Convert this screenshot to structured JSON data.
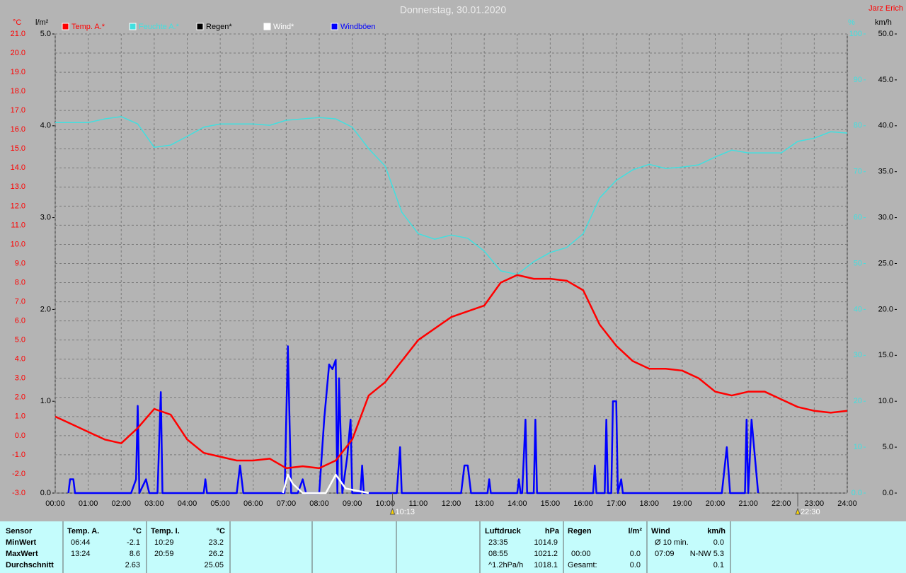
{
  "chart_data": {
    "type": "line",
    "title": "Donnerstag, 30.01.2020",
    "author": "Jarz Erich",
    "y_unit": "°C",
    "y2_unit": "l/m²",
    "y3_unit": "%",
    "y4_unit": "km/h",
    "xlim": [
      0,
      24
    ],
    "xticks": [
      {
        "value": 0,
        "label": "00:00"
      },
      {
        "value": 1,
        "label": "01:00"
      },
      {
        "value": 2,
        "label": "02:00"
      },
      {
        "value": 3,
        "label": "03:00"
      },
      {
        "value": 4,
        "label": "04:00"
      },
      {
        "value": 5,
        "label": "05:00"
      },
      {
        "value": 6,
        "label": "06:00"
      },
      {
        "value": 7,
        "label": "07:00"
      },
      {
        "value": 8,
        "label": "08:00"
      },
      {
        "value": 9,
        "label": "09:00"
      },
      {
        "value": 10,
        "label": "10:00"
      },
      {
        "value": 11,
        "label": "11:00"
      },
      {
        "value": 12,
        "label": "12:00"
      },
      {
        "value": 13,
        "label": "13:00"
      },
      {
        "value": 14,
        "label": "14:00"
      },
      {
        "value": 15,
        "label": "15:00"
      },
      {
        "value": 16,
        "label": "16:00"
      },
      {
        "value": 17,
        "label": "17:00"
      },
      {
        "value": 18,
        "label": "18:00"
      },
      {
        "value": 19,
        "label": "19:00"
      },
      {
        "value": 20,
        "label": "20:00"
      },
      {
        "value": 21,
        "label": "21:00"
      },
      {
        "value": 22,
        "label": "22:00"
      },
      {
        "value": 23,
        "label": "23:00"
      },
      {
        "value": 24,
        "label": "24:00"
      }
    ],
    "ylim": [
      -3,
      21
    ],
    "yticks": [
      {
        "value": -3,
        "label": "-3.0"
      },
      {
        "value": -2,
        "label": "-2.0"
      },
      {
        "value": -1,
        "label": "-1.0"
      },
      {
        "value": 0,
        "label": "0.0"
      },
      {
        "value": 1,
        "label": "1.0"
      },
      {
        "value": 2,
        "label": "2.0"
      },
      {
        "value": 3,
        "label": "3.0"
      },
      {
        "value": 4,
        "label": "4.0"
      },
      {
        "value": 5,
        "label": "5.0"
      },
      {
        "value": 6,
        "label": "6.0"
      },
      {
        "value": 7,
        "label": "7.0"
      },
      {
        "value": 8,
        "label": "8.0"
      },
      {
        "value": 9,
        "label": "9.0"
      },
      {
        "value": 10,
        "label": "10.0"
      },
      {
        "value": 11,
        "label": "11.0"
      },
      {
        "value": 12,
        "label": "12.0"
      },
      {
        "value": 13,
        "label": "13.0"
      },
      {
        "value": 14,
        "label": "14.0"
      },
      {
        "value": 15,
        "label": "15.0"
      },
      {
        "value": 16,
        "label": "16.0"
      },
      {
        "value": 17,
        "label": "17.0"
      },
      {
        "value": 18,
        "label": "18.0"
      },
      {
        "value": 19,
        "label": "19.0"
      },
      {
        "value": 20,
        "label": "20.0"
      },
      {
        "value": 21,
        "label": "21.0"
      }
    ],
    "y2lim": [
      0,
      5
    ],
    "y2ticks": [
      {
        "value": 0,
        "label": "0.0"
      },
      {
        "value": 1,
        "label": "1.0"
      },
      {
        "value": 2,
        "label": "2.0"
      },
      {
        "value": 3,
        "label": "3.0"
      },
      {
        "value": 4,
        "label": "4.0"
      },
      {
        "value": 5,
        "label": "5.0"
      }
    ],
    "y3lim": [
      0,
      100
    ],
    "y3ticks": [
      {
        "value": 0,
        "label": "0.0"
      },
      10,
      20,
      30,
      40,
      50,
      60,
      70,
      80,
      90,
      100
    ],
    "y4lim": [
      0,
      50
    ],
    "y4ticks": [
      {
        "value": 0,
        "label": "0.0"
      },
      {
        "value": 5,
        "label": "5.0"
      },
      {
        "value": 10,
        "label": "10.0"
      },
      {
        "value": 15,
        "label": "15.0"
      },
      {
        "value": 20,
        "label": "20.0"
      },
      {
        "value": 25,
        "label": "25.0"
      },
      {
        "value": 30,
        "label": "30.0"
      },
      {
        "value": 35,
        "label": "35.0"
      },
      {
        "value": 40,
        "label": "40.0"
      },
      {
        "value": 45,
        "label": "45.0"
      },
      {
        "value": 50,
        "label": "50.0"
      }
    ],
    "grid": true,
    "series": [
      {
        "name": "Temp. A.*",
        "color": "#ff0000",
        "axis": "y",
        "x": [
          0,
          0.5,
          1,
          1.5,
          2,
          2.5,
          3,
          3.5,
          4,
          4.5,
          5,
          5.5,
          6,
          6.5,
          7,
          7.5,
          8,
          8.5,
          9,
          9.5,
          10,
          10.5,
          11,
          11.5,
          12,
          12.5,
          13,
          13.5,
          14,
          14.5,
          15,
          15.5,
          16,
          16.5,
          17,
          17.5,
          18,
          18.5,
          19,
          19.5,
          20,
          20.5,
          21,
          21.5,
          22,
          22.5,
          23,
          23.5,
          24
        ],
        "values": [
          1.0,
          0.6,
          0.2,
          -0.2,
          -0.4,
          0.4,
          1.4,
          1.1,
          -0.2,
          -0.9,
          -1.1,
          -1.3,
          -1.3,
          -1.2,
          -1.7,
          -1.6,
          -1.7,
          -1.3,
          -0.2,
          2.1,
          2.8,
          3.9,
          5.0,
          5.6,
          6.2,
          6.5,
          6.8,
          8.0,
          8.4,
          8.2,
          8.2,
          8.1,
          7.6,
          5.8,
          4.7,
          3.9,
          3.5,
          3.5,
          3.4,
          3.0,
          2.3,
          2.1,
          2.3,
          2.3,
          1.9,
          1.5,
          1.3,
          1.2,
          1.3
        ]
      },
      {
        "name": "Feuchte A.*",
        "color": "#40e0e0",
        "axis": "y3",
        "x": [
          0,
          0.5,
          1,
          1.5,
          2,
          2.5,
          3,
          3.5,
          4,
          4.5,
          5,
          5.5,
          6,
          6.5,
          7,
          7.5,
          8,
          8.5,
          9,
          9.5,
          10,
          10.5,
          11,
          11.5,
          12,
          12.5,
          13,
          13.5,
          14,
          14.5,
          15,
          15.5,
          16,
          16.5,
          17,
          17.5,
          18,
          18.5,
          19,
          19.5,
          20,
          20.5,
          21,
          21.5,
          22,
          22.5,
          23,
          23.5,
          24
        ],
        "values": [
          80.7,
          80.7,
          80.7,
          81.5,
          82,
          80.4,
          75.3,
          75.8,
          77.7,
          79.7,
          80.4,
          80.4,
          80.4,
          80.1,
          81.2,
          81.5,
          81.8,
          81.5,
          79.7,
          75,
          71.2,
          61.2,
          56.5,
          55.3,
          56.2,
          55.5,
          52.7,
          48.4,
          47.6,
          50.4,
          52.4,
          53.5,
          56.5,
          64.3,
          68.1,
          70.4,
          71.6,
          70.7,
          71,
          71.5,
          73.2,
          74.7,
          74.1,
          74.1,
          74.1,
          76.6,
          77.3,
          78.7,
          78.4
        ]
      },
      {
        "name": "Regen*",
        "color": "#000000",
        "axis": "y2",
        "x": [],
        "values": []
      },
      {
        "name": "Wind*",
        "color": "#ffffff",
        "axis": "y4",
        "x": [
          6.9,
          7.05,
          7.2,
          7.5,
          8.2,
          8.5,
          8.8,
          9.5
        ],
        "values": [
          0,
          2,
          1,
          0,
          0,
          2,
          0.5,
          0
        ]
      },
      {
        "name": "Windböen",
        "color": "#0000ff",
        "axis": "y4",
        "x": [
          0.4,
          0.45,
          0.55,
          0.6,
          2.3,
          2.45,
          2.5,
          2.55,
          2.75,
          2.85,
          3.1,
          3.2,
          3.25,
          4.5,
          4.55,
          4.6,
          5.5,
          5.6,
          5.7,
          6.95,
          7.05,
          7.15,
          7.35,
          7.5,
          7.6,
          8.0,
          8.15,
          8.3,
          8.4,
          8.5,
          8.55,
          8.6,
          8.7,
          8.85,
          8.95,
          9.0,
          9.25,
          9.3,
          9.35,
          10.35,
          10.45,
          10.5,
          12.3,
          12.4,
          12.5,
          12.6,
          13.1,
          13.15,
          13.2,
          14.0,
          14.05,
          14.1,
          14.15,
          14.25,
          14.3,
          14.5,
          14.55,
          14.6,
          16.3,
          16.35,
          16.4,
          16.65,
          16.7,
          16.75,
          16.85,
          16.9,
          17.0,
          17.05,
          17.15,
          17.2,
          20.2,
          20.35,
          20.45,
          20.9,
          20.95,
          21.0,
          21.1,
          21.3
        ],
        "values": [
          0,
          1.5,
          1.5,
          0,
          0,
          1.5,
          9.5,
          0,
          1.5,
          0,
          0,
          11,
          0,
          0,
          1.5,
          0,
          0,
          3,
          0,
          0,
          16,
          0,
          0,
          1.5,
          0,
          0,
          8,
          14,
          13.5,
          14.5,
          0,
          12.5,
          0,
          4,
          8,
          0,
          0,
          3,
          0,
          0,
          5,
          0,
          0,
          3,
          3,
          0,
          0,
          1.5,
          0,
          0,
          1.5,
          0,
          0,
          8,
          0,
          0,
          8,
          0,
          0,
          3,
          0,
          0,
          8,
          0,
          0,
          10,
          10,
          0,
          1.5,
          0,
          0,
          5,
          0,
          0,
          8,
          0,
          8,
          0
        ]
      }
    ],
    "annotations": [
      {
        "x": 10.22,
        "label": "10:13"
      },
      {
        "x": 22.5,
        "label": "22:30"
      }
    ]
  },
  "stats": {
    "sensor": [
      "Sensor",
      "MinWert",
      "MaxWert",
      "Durchschnitt"
    ],
    "blocks": [
      {
        "title": "Temp. A.",
        "unit": "°C",
        "rows": [
          [
            "06:44",
            "-2.1"
          ],
          [
            "13:24",
            "8.6"
          ],
          [
            null,
            "2.63"
          ]
        ]
      },
      {
        "title": "Temp. I.",
        "unit": "°C",
        "rows": [
          [
            "10:29",
            "23.2"
          ],
          [
            "20:59",
            "26.2"
          ],
          [
            null,
            "25.05"
          ]
        ]
      },
      {
        "title": "Luftdruck",
        "unit": "hPa",
        "rows": [
          [
            "23:35",
            "1014.9"
          ],
          [
            "08:55",
            "1021.2"
          ],
          [
            "^1.2hPa/h",
            "1018.1"
          ]
        ]
      },
      {
        "title": "Regen",
        "unit": "l/m²",
        "rows": [
          null,
          [
            "00:00",
            "0.0"
          ],
          [
            "Gesamt:",
            "0.0"
          ]
        ]
      },
      {
        "title": "Wind",
        "unit": "km/h",
        "rows": [
          [
            "Ø 10 min.",
            "0.0"
          ],
          [
            "07:09",
            "N-NW 5.3"
          ],
          [
            null,
            "0.1"
          ]
        ]
      }
    ]
  }
}
